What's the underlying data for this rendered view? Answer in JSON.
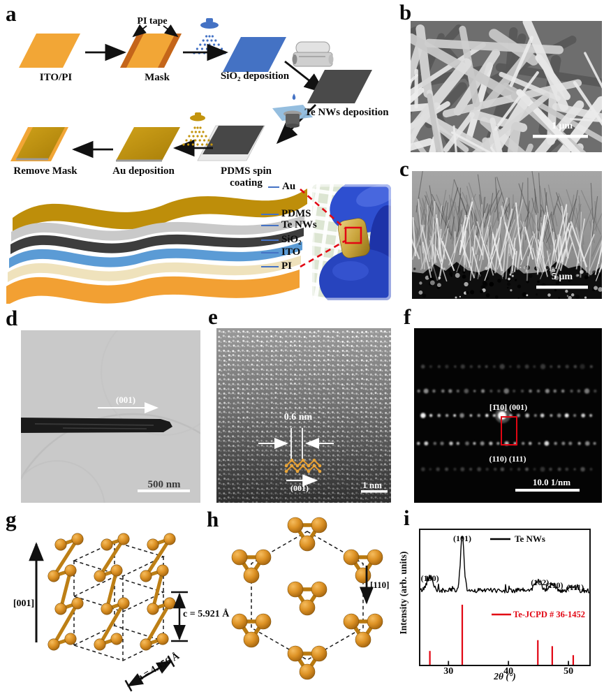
{
  "panels": {
    "a": {
      "letter": "a",
      "steps": {
        "ito_pi": "ITO/PI",
        "mask": "Mask",
        "pi_tape": "PI tape",
        "sio2_deposition": "SiO₂ deposition",
        "te_nws_deposition": "Te NWs deposition",
        "pdms_spin_coating": "PDMS spin coating",
        "au_deposition": "Au deposition",
        "remove_mask": "Remove Mask"
      },
      "stack_labels": {
        "au": "Au",
        "pdms": "PDMS",
        "te_nws": "Te NWs",
        "sio2": "SiO₂",
        "ito": "ITO",
        "pi": "PI"
      }
    },
    "b": {
      "letter": "b",
      "scale_bar": "1 μm"
    },
    "c": {
      "letter": "c",
      "scale_bar": "5 μm"
    },
    "d": {
      "letter": "d",
      "direction_label": "(001)",
      "scale_bar": "500 nm"
    },
    "e": {
      "letter": "e",
      "spacing_label": "0.6 nm",
      "direction_label": "(001)",
      "scale_bar": "1 nm"
    },
    "f": {
      "letter": "f",
      "zone_axis_label": "[1̄10] (001)",
      "reflection_label": "(110) (111)",
      "scale_bar": "10.0 1/nm"
    },
    "g": {
      "letter": "g",
      "axis_label": "[001]",
      "c_label": "c = 5.921 Å",
      "a_label": "a = 4.456 Å"
    },
    "h": {
      "letter": "h",
      "axis_label": "[110]"
    },
    "i": {
      "letter": "i"
    }
  },
  "chart_data": {
    "type": "line",
    "title": "",
    "xlabel": "2θ (°)",
    "ylabel": "Intensity (arb. units)",
    "xlim": [
      25.2,
      53.6
    ],
    "xticks": [
      30,
      40,
      50
    ],
    "grid": false,
    "legend_position": "inside-right",
    "series": [
      {
        "name": "Te NWs",
        "color": "#000000",
        "style": "trace",
        "peaks": [
          {
            "two_theta": 26.9,
            "hkl": "(100)",
            "rel_intensity": 26
          },
          {
            "two_theta": 32.3,
            "hkl": "(101)",
            "rel_intensity": 100
          },
          {
            "two_theta": 44.9,
            "hkl": "(102)",
            "rel_intensity": 18
          },
          {
            "two_theta": 47.3,
            "hkl": "(110)",
            "rel_intensity": 13
          },
          {
            "two_theta": 50.8,
            "hkl": "(111)",
            "rel_intensity": 9
          }
        ]
      },
      {
        "name": "Te-JCPD # 36-1452",
        "color": "#e20613",
        "style": "sticks",
        "sticks": [
          {
            "two_theta": 26.9,
            "rel_intensity": 23
          },
          {
            "two_theta": 32.3,
            "rel_intensity": 100
          },
          {
            "two_theta": 44.9,
            "rel_intensity": 41
          },
          {
            "two_theta": 47.3,
            "rel_intensity": 31
          },
          {
            "two_theta": 50.8,
            "rel_intensity": 16
          }
        ]
      }
    ]
  },
  "colors": {
    "jcpd_red": "#e20613",
    "atom_orange": "#d8922a",
    "sio2_blue": "#4472c4",
    "au_gold": "#c3940d",
    "pi_orange": "#f2a636",
    "te_dark": "#4a4a4a",
    "glove_blue": "#2e4fd0"
  }
}
